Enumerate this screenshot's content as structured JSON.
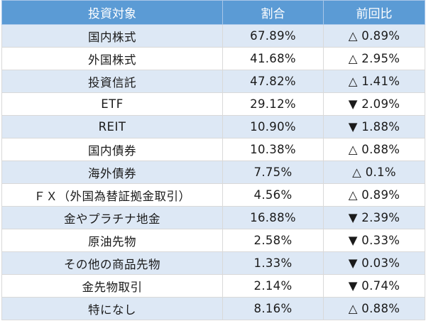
{
  "table": {
    "headers": [
      "投資対象",
      "割合",
      "前回比"
    ],
    "rows": [
      {
        "name": "国内株式",
        "ratio": "67.89%",
        "change": "△ 0.89%"
      },
      {
        "name": "外国株式",
        "ratio": "41.68%",
        "change": "△ 2.95%"
      },
      {
        "name": "投資信託",
        "ratio": "47.82%",
        "change": "△ 1.41%"
      },
      {
        "name": "ETF",
        "ratio": "29.12%",
        "change": "▼ 2.09%"
      },
      {
        "name": "REIT",
        "ratio": "10.90%",
        "change": "▼ 1.88%"
      },
      {
        "name": "国内債券",
        "ratio": "10.38%",
        "change": "△ 0.88%"
      },
      {
        "name": "海外債券",
        "ratio": "7.75%",
        "change": "△ 0.1%"
      },
      {
        "name": "ＦＸ（外国為替証拠金取引）",
        "ratio": "4.56%",
        "change": "△ 0.89%"
      },
      {
        "name": "金やプラチナ地金",
        "ratio": "16.88%",
        "change": "▼ 2.39%"
      },
      {
        "name": "原油先物",
        "ratio": "2.58%",
        "change": "▼ 0.33%"
      },
      {
        "name": "その他の商品先物",
        "ratio": "1.33%",
        "change": "▼ 0.03%"
      },
      {
        "name": "金先物取引",
        "ratio": "2.14%",
        "change": "▼ 0.74%"
      },
      {
        "name": "特になし",
        "ratio": "8.16%",
        "change": "△ 0.88%"
      }
    ]
  },
  "colors": {
    "header_bg": "#5b9bd5",
    "header_text": "#ffffff",
    "row_alt_bg": "#dde8f5",
    "row_bg": "#ffffff"
  }
}
